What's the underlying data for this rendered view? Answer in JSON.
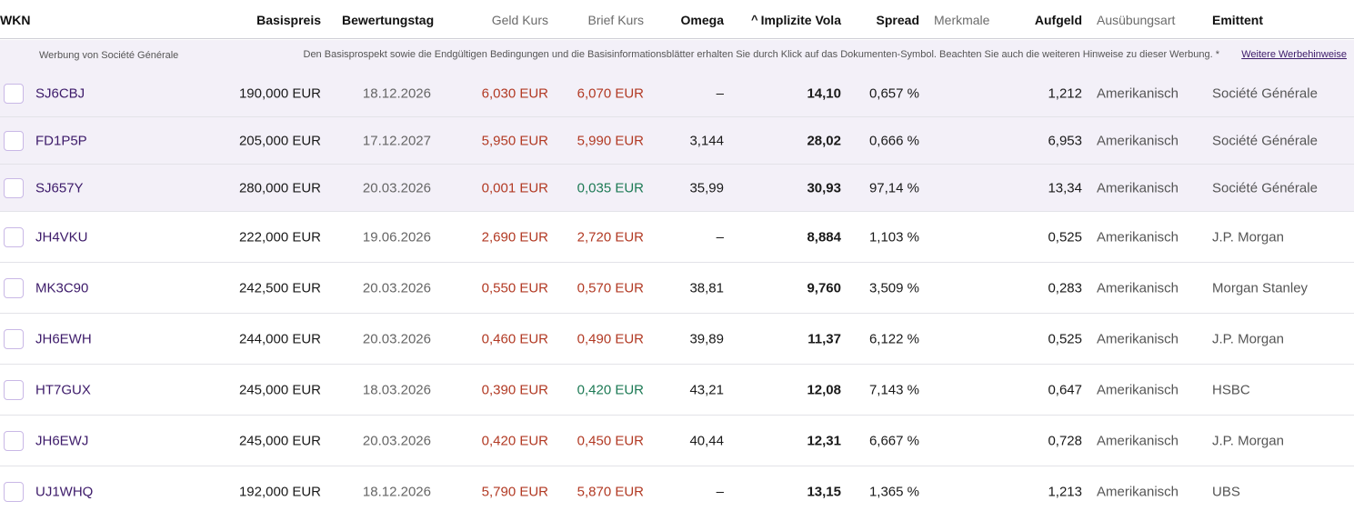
{
  "header": {
    "wkn": "WKN",
    "basispreis": "Basispreis",
    "bewertungstag": "Bewertungstag",
    "geld_kurs": "Geld Kurs",
    "brief_kurs": "Brief Kurs",
    "omega": "Omega",
    "implizite_vola": "Implizite Vola",
    "spread": "Spread",
    "merkmale": "Merkmale",
    "aufgeld": "Aufgeld",
    "ausuebungsart": "Ausübungsart",
    "emittent": "Emittent"
  },
  "ad": {
    "label": "Werbung von Société Générale",
    "text": "Den Basisprospekt sowie die Endgültigen Bedingungen und die Basisinformationsblätter erhalten Sie durch Klick auf das Dokumenten-Symbol. Beachten Sie auch die weiteren Hinweise zu dieser Werbung. *",
    "link": "Weitere Werbehinweise"
  },
  "colors": {
    "price_red": "#b23a24",
    "price_green": "#1d7a55",
    "promo_bg": "#f3f0f8",
    "wkn_purple": "#3d1b6a"
  },
  "rows": [
    {
      "wkn": "SJ6CBJ",
      "basispreis": "190,000 EUR",
      "bewertungstag": "18.12.2026",
      "geld": "6,030 EUR",
      "brief": "6,070 EUR",
      "brief_color": "red",
      "omega": "–",
      "vola": "14,10",
      "spread": "0,657 %",
      "aufgeld": "1,212",
      "art": "Amerikanisch",
      "emittent": "Société Générale",
      "promo": true
    },
    {
      "wkn": "FD1P5P",
      "basispreis": "205,000 EUR",
      "bewertungstag": "17.12.2027",
      "geld": "5,950 EUR",
      "brief": "5,990 EUR",
      "brief_color": "red",
      "omega": "3,144",
      "vola": "28,02",
      "spread": "0,666 %",
      "aufgeld": "6,953",
      "art": "Amerikanisch",
      "emittent": "Société Générale",
      "promo": true
    },
    {
      "wkn": "SJ657Y",
      "basispreis": "280,000 EUR",
      "bewertungstag": "20.03.2026",
      "geld": "0,001 EUR",
      "brief": "0,035 EUR",
      "brief_color": "green",
      "omega": "35,99",
      "vola": "30,93",
      "spread": "97,14 %",
      "aufgeld": "13,34",
      "art": "Amerikanisch",
      "emittent": "Société Générale",
      "promo": true
    },
    {
      "wkn": "JH4VKU",
      "basispreis": "222,000 EUR",
      "bewertungstag": "19.06.2026",
      "geld": "2,690 EUR",
      "brief": "2,720 EUR",
      "brief_color": "red",
      "omega": "–",
      "vola": "8,884",
      "spread": "1,103 %",
      "aufgeld": "0,525",
      "art": "Amerikanisch",
      "emittent": "J.P. Morgan",
      "promo": false
    },
    {
      "wkn": "MK3C90",
      "basispreis": "242,500 EUR",
      "bewertungstag": "20.03.2026",
      "geld": "0,550 EUR",
      "brief": "0,570 EUR",
      "brief_color": "red",
      "omega": "38,81",
      "vola": "9,760",
      "spread": "3,509 %",
      "aufgeld": "0,283",
      "art": "Amerikanisch",
      "emittent": "Morgan Stanley",
      "promo": false
    },
    {
      "wkn": "JH6EWH",
      "basispreis": "244,000 EUR",
      "bewertungstag": "20.03.2026",
      "geld": "0,460 EUR",
      "brief": "0,490 EUR",
      "brief_color": "red",
      "omega": "39,89",
      "vola": "11,37",
      "spread": "6,122 %",
      "aufgeld": "0,525",
      "art": "Amerikanisch",
      "emittent": "J.P. Morgan",
      "promo": false
    },
    {
      "wkn": "HT7GUX",
      "basispreis": "245,000 EUR",
      "bewertungstag": "18.03.2026",
      "geld": "0,390 EUR",
      "brief": "0,420 EUR",
      "brief_color": "green",
      "omega": "43,21",
      "vola": "12,08",
      "spread": "7,143 %",
      "aufgeld": "0,647",
      "art": "Amerikanisch",
      "emittent": "HSBC",
      "promo": false
    },
    {
      "wkn": "JH6EWJ",
      "basispreis": "245,000 EUR",
      "bewertungstag": "20.03.2026",
      "geld": "0,420 EUR",
      "brief": "0,450 EUR",
      "brief_color": "red",
      "omega": "40,44",
      "vola": "12,31",
      "spread": "6,667 %",
      "aufgeld": "0,728",
      "art": "Amerikanisch",
      "emittent": "J.P. Morgan",
      "promo": false
    },
    {
      "wkn": "UJ1WHQ",
      "basispreis": "192,000 EUR",
      "bewertungstag": "18.12.2026",
      "geld": "5,790 EUR",
      "brief": "5,870 EUR",
      "brief_color": "red",
      "omega": "–",
      "vola": "13,15",
      "spread": "1,365 %",
      "aufgeld": "1,213",
      "art": "Amerikanisch",
      "emittent": "UBS",
      "promo": false
    }
  ]
}
